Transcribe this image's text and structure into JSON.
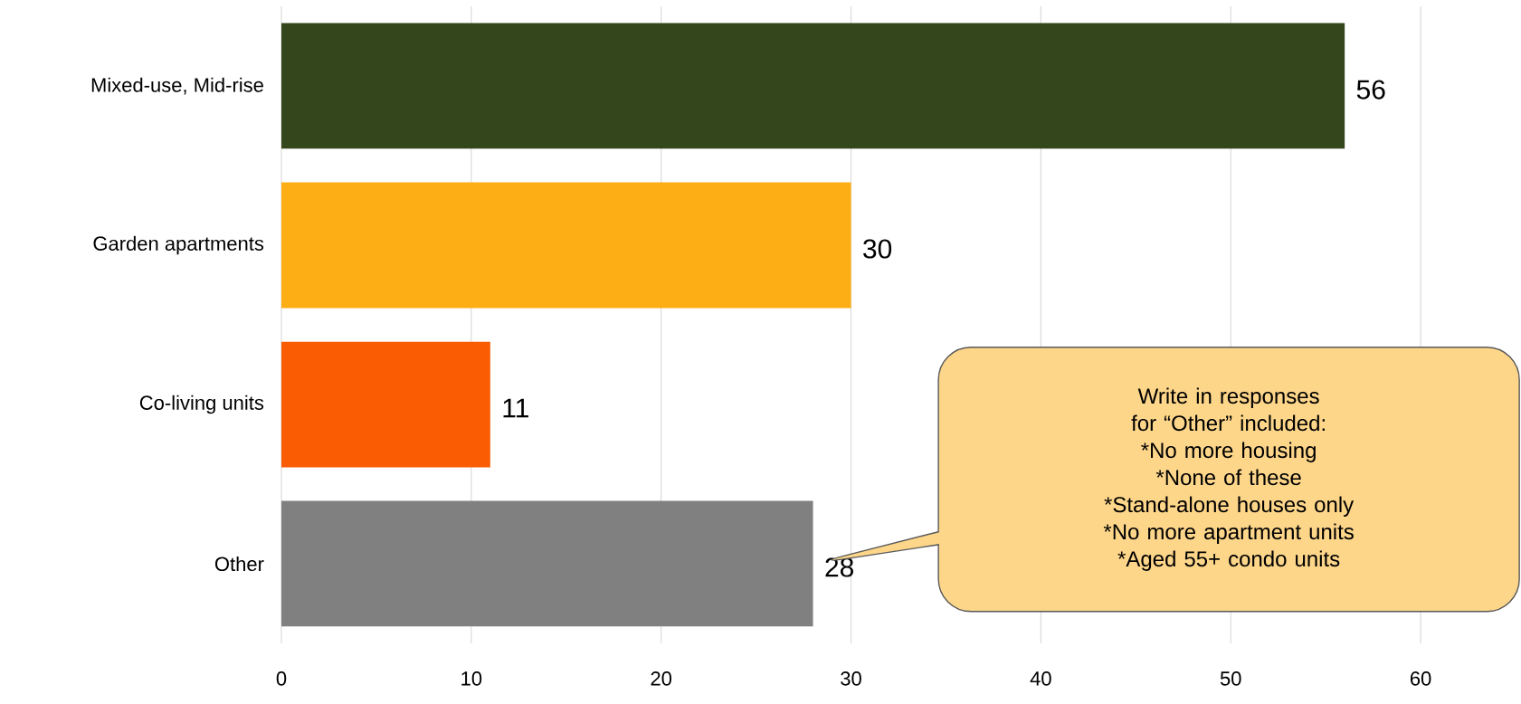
{
  "chart_data": {
    "type": "bar",
    "orientation": "horizontal",
    "categories": [
      "Mixed-use, Mid-rise",
      "Garden apartments",
      "Co-living units",
      "Other"
    ],
    "values": [
      56,
      30,
      11,
      28
    ],
    "colors": [
      "#33461c",
      "#fdae14",
      "#f95c03",
      "#808080"
    ],
    "xlim": [
      0,
      65
    ],
    "xticks": [
      0,
      10,
      20,
      30,
      40,
      50,
      60
    ],
    "grid": "x",
    "data_labels": true,
    "annotations": [
      "Write in responses for “Other” included:",
      "*No more housing",
      "*None of these",
      "*Stand-alone houses only",
      "*No more apartment units",
      "*Aged 55+ condo units"
    ]
  }
}
